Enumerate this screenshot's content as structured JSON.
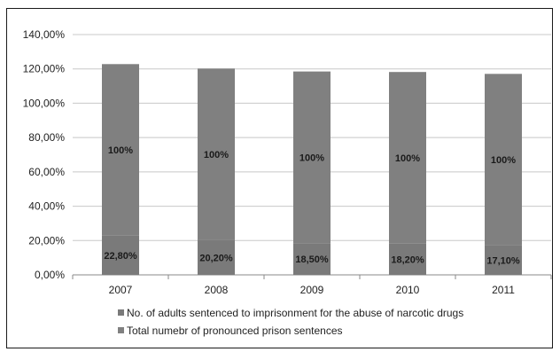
{
  "chart_data": {
    "type": "bar",
    "stacked": true,
    "categories": [
      "2007",
      "2008",
      "2009",
      "2010",
      "2011"
    ],
    "series": [
      {
        "name": "No. of adults sentenced to imprisonment for the abuse of narcotic drugs",
        "values": [
          22.8,
          20.2,
          18.5,
          18.2,
          17.1
        ],
        "labels": [
          "22,80%",
          "20,20%",
          "18,50%",
          "18,20%",
          "17,10%"
        ],
        "color": "#7a7a7a"
      },
      {
        "name": "Total numebr of pronounced prison sentences",
        "values": [
          100,
          100,
          100,
          100,
          100
        ],
        "labels": [
          "100%",
          "100%",
          "100%",
          "100%",
          "100%"
        ],
        "color": "#808080"
      }
    ],
    "yticks": [
      "0,00%",
      "20,00%",
      "40,00%",
      "60,00%",
      "80,00%",
      "100,00%",
      "120,00%",
      "140,00%"
    ],
    "ylim": [
      0,
      140
    ],
    "grid": true,
    "legend_position": "bottom"
  }
}
